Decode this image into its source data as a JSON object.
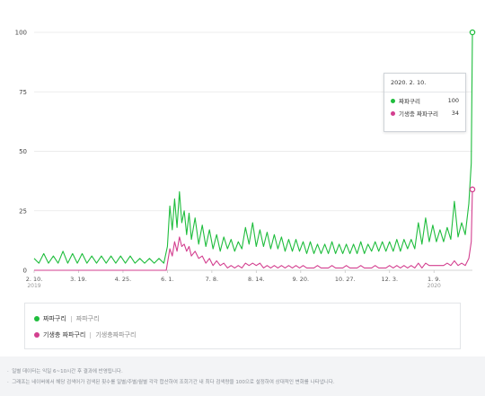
{
  "colors": {
    "series1": "#1fbd3d",
    "series2": "#d33f8f",
    "grid": "#e6e6e6",
    "axis": "#c8c8c8"
  },
  "chart_data": {
    "type": "line",
    "title": "",
    "xlabel": "",
    "ylabel": "",
    "ylim": [
      0,
      100
    ],
    "yticks": [
      0,
      25,
      50,
      75,
      100
    ],
    "xlim": [
      "2019-02-10",
      "2020-02-10"
    ],
    "grid": true,
    "x_ticks": [
      {
        "date": "2019-02-10",
        "label": "2. 10.",
        "sub": "2019"
      },
      {
        "date": "2019-03-19",
        "label": "3. 19.",
        "sub": ""
      },
      {
        "date": "2019-04-25",
        "label": "4. 25.",
        "sub": ""
      },
      {
        "date": "2019-06-01",
        "label": "6. 1.",
        "sub": ""
      },
      {
        "date": "2019-07-08",
        "label": "7. 8.",
        "sub": ""
      },
      {
        "date": "2019-08-14",
        "label": "8. 14.",
        "sub": ""
      },
      {
        "date": "2019-09-20",
        "label": "9. 20.",
        "sub": ""
      },
      {
        "date": "2019-10-27",
        "label": "10. 27.",
        "sub": ""
      },
      {
        "date": "2019-12-03",
        "label": "12. 3.",
        "sub": ""
      },
      {
        "date": "2020-01-09",
        "label": "1. 9.",
        "sub": "2020"
      }
    ],
    "series": [
      {
        "name": "짜파구리",
        "points": [
          [
            "2019-02-10",
            5
          ],
          [
            "2019-02-14",
            3
          ],
          [
            "2019-02-18",
            7
          ],
          [
            "2019-02-22",
            3
          ],
          [
            "2019-02-26",
            6
          ],
          [
            "2019-03-02",
            3
          ],
          [
            "2019-03-06",
            8
          ],
          [
            "2019-03-10",
            3
          ],
          [
            "2019-03-14",
            7
          ],
          [
            "2019-03-18",
            3
          ],
          [
            "2019-03-22",
            7
          ],
          [
            "2019-03-26",
            3
          ],
          [
            "2019-03-30",
            6
          ],
          [
            "2019-04-03",
            3
          ],
          [
            "2019-04-07",
            6
          ],
          [
            "2019-04-11",
            3
          ],
          [
            "2019-04-15",
            6
          ],
          [
            "2019-04-19",
            3
          ],
          [
            "2019-04-23",
            6
          ],
          [
            "2019-04-27",
            3
          ],
          [
            "2019-05-01",
            6
          ],
          [
            "2019-05-05",
            3
          ],
          [
            "2019-05-09",
            5
          ],
          [
            "2019-05-13",
            3
          ],
          [
            "2019-05-17",
            5
          ],
          [
            "2019-05-21",
            3
          ],
          [
            "2019-05-25",
            5
          ],
          [
            "2019-05-29",
            3
          ],
          [
            "2019-06-01",
            10
          ],
          [
            "2019-06-03",
            27
          ],
          [
            "2019-06-05",
            17
          ],
          [
            "2019-06-07",
            30
          ],
          [
            "2019-06-09",
            18
          ],
          [
            "2019-06-11",
            33
          ],
          [
            "2019-06-13",
            20
          ],
          [
            "2019-06-15",
            25
          ],
          [
            "2019-06-17",
            15
          ],
          [
            "2019-06-19",
            24
          ],
          [
            "2019-06-21",
            13
          ],
          [
            "2019-06-24",
            22
          ],
          [
            "2019-06-27",
            11
          ],
          [
            "2019-06-30",
            19
          ],
          [
            "2019-07-03",
            10
          ],
          [
            "2019-07-06",
            17
          ],
          [
            "2019-07-09",
            9
          ],
          [
            "2019-07-12",
            15
          ],
          [
            "2019-07-15",
            8
          ],
          [
            "2019-07-18",
            14
          ],
          [
            "2019-07-21",
            9
          ],
          [
            "2019-07-24",
            13
          ],
          [
            "2019-07-27",
            8
          ],
          [
            "2019-07-30",
            12
          ],
          [
            "2019-08-02",
            9
          ],
          [
            "2019-08-05",
            18
          ],
          [
            "2019-08-08",
            11
          ],
          [
            "2019-08-11",
            20
          ],
          [
            "2019-08-14",
            10
          ],
          [
            "2019-08-17",
            17
          ],
          [
            "2019-08-20",
            10
          ],
          [
            "2019-08-23",
            16
          ],
          [
            "2019-08-26",
            9
          ],
          [
            "2019-08-29",
            15
          ],
          [
            "2019-09-01",
            9
          ],
          [
            "2019-09-04",
            14
          ],
          [
            "2019-09-07",
            8
          ],
          [
            "2019-09-10",
            13
          ],
          [
            "2019-09-13",
            8
          ],
          [
            "2019-09-16",
            13
          ],
          [
            "2019-09-19",
            8
          ],
          [
            "2019-09-22",
            12
          ],
          [
            "2019-09-25",
            7
          ],
          [
            "2019-09-28",
            12
          ],
          [
            "2019-10-01",
            7
          ],
          [
            "2019-10-04",
            11
          ],
          [
            "2019-10-07",
            7
          ],
          [
            "2019-10-10",
            11
          ],
          [
            "2019-10-13",
            7
          ],
          [
            "2019-10-16",
            12
          ],
          [
            "2019-10-19",
            7
          ],
          [
            "2019-10-22",
            11
          ],
          [
            "2019-10-25",
            7
          ],
          [
            "2019-10-28",
            11
          ],
          [
            "2019-10-31",
            7
          ],
          [
            "2019-11-03",
            11
          ],
          [
            "2019-11-06",
            7
          ],
          [
            "2019-11-09",
            12
          ],
          [
            "2019-11-12",
            7
          ],
          [
            "2019-11-15",
            11
          ],
          [
            "2019-11-18",
            8
          ],
          [
            "2019-11-21",
            12
          ],
          [
            "2019-11-24",
            8
          ],
          [
            "2019-11-27",
            12
          ],
          [
            "2019-11-30",
            8
          ],
          [
            "2019-12-03",
            12
          ],
          [
            "2019-12-06",
            8
          ],
          [
            "2019-12-09",
            13
          ],
          [
            "2019-12-12",
            8
          ],
          [
            "2019-12-15",
            13
          ],
          [
            "2019-12-18",
            9
          ],
          [
            "2019-12-21",
            13
          ],
          [
            "2019-12-24",
            9
          ],
          [
            "2019-12-27",
            20
          ],
          [
            "2019-12-30",
            11
          ],
          [
            "2020-01-02",
            22
          ],
          [
            "2020-01-05",
            12
          ],
          [
            "2020-01-08",
            19
          ],
          [
            "2020-01-11",
            12
          ],
          [
            "2020-01-14",
            17
          ],
          [
            "2020-01-17",
            12
          ],
          [
            "2020-01-20",
            18
          ],
          [
            "2020-01-23",
            13
          ],
          [
            "2020-01-26",
            29
          ],
          [
            "2020-01-29",
            14
          ],
          [
            "2020-02-01",
            20
          ],
          [
            "2020-02-04",
            15
          ],
          [
            "2020-02-07",
            28
          ],
          [
            "2020-02-09",
            45
          ],
          [
            "2020-02-10",
            100
          ]
        ]
      },
      {
        "name": "기생충 짜파구리",
        "points": [
          [
            "2019-02-10",
            0
          ],
          [
            "2019-05-31",
            0
          ],
          [
            "2019-06-01",
            3
          ],
          [
            "2019-06-03",
            9
          ],
          [
            "2019-06-05",
            6
          ],
          [
            "2019-06-07",
            12
          ],
          [
            "2019-06-09",
            8
          ],
          [
            "2019-06-11",
            14
          ],
          [
            "2019-06-13",
            10
          ],
          [
            "2019-06-15",
            11
          ],
          [
            "2019-06-17",
            8
          ],
          [
            "2019-06-19",
            10
          ],
          [
            "2019-06-21",
            6
          ],
          [
            "2019-06-24",
            8
          ],
          [
            "2019-06-27",
            5
          ],
          [
            "2019-06-30",
            6
          ],
          [
            "2019-07-03",
            3
          ],
          [
            "2019-07-06",
            5
          ],
          [
            "2019-07-09",
            2
          ],
          [
            "2019-07-12",
            4
          ],
          [
            "2019-07-15",
            2
          ],
          [
            "2019-07-18",
            3
          ],
          [
            "2019-07-21",
            1
          ],
          [
            "2019-07-24",
            2
          ],
          [
            "2019-07-27",
            1
          ],
          [
            "2019-07-30",
            2
          ],
          [
            "2019-08-02",
            1
          ],
          [
            "2019-08-05",
            3
          ],
          [
            "2019-08-08",
            2
          ],
          [
            "2019-08-11",
            3
          ],
          [
            "2019-08-14",
            2
          ],
          [
            "2019-08-17",
            3
          ],
          [
            "2019-08-20",
            1
          ],
          [
            "2019-08-23",
            2
          ],
          [
            "2019-08-26",
            1
          ],
          [
            "2019-08-29",
            2
          ],
          [
            "2019-09-01",
            1
          ],
          [
            "2019-09-04",
            2
          ],
          [
            "2019-09-07",
            1
          ],
          [
            "2019-09-10",
            2
          ],
          [
            "2019-09-13",
            1
          ],
          [
            "2019-09-16",
            2
          ],
          [
            "2019-09-19",
            1
          ],
          [
            "2019-09-22",
            2
          ],
          [
            "2019-09-25",
            1
          ],
          [
            "2019-09-28",
            1
          ],
          [
            "2019-10-01",
            1
          ],
          [
            "2019-10-04",
            2
          ],
          [
            "2019-10-07",
            1
          ],
          [
            "2019-10-10",
            1
          ],
          [
            "2019-10-13",
            1
          ],
          [
            "2019-10-16",
            2
          ],
          [
            "2019-10-19",
            1
          ],
          [
            "2019-10-22",
            1
          ],
          [
            "2019-10-25",
            1
          ],
          [
            "2019-10-28",
            2
          ],
          [
            "2019-10-31",
            1
          ],
          [
            "2019-11-03",
            1
          ],
          [
            "2019-11-06",
            1
          ],
          [
            "2019-11-09",
            2
          ],
          [
            "2019-11-12",
            1
          ],
          [
            "2019-11-15",
            1
          ],
          [
            "2019-11-18",
            1
          ],
          [
            "2019-11-21",
            2
          ],
          [
            "2019-11-24",
            1
          ],
          [
            "2019-11-27",
            1
          ],
          [
            "2019-11-30",
            1
          ],
          [
            "2019-12-03",
            2
          ],
          [
            "2019-12-06",
            1
          ],
          [
            "2019-12-09",
            2
          ],
          [
            "2019-12-12",
            1
          ],
          [
            "2019-12-15",
            2
          ],
          [
            "2019-12-18",
            1
          ],
          [
            "2019-12-21",
            2
          ],
          [
            "2019-12-24",
            1
          ],
          [
            "2019-12-27",
            3
          ],
          [
            "2019-12-30",
            1
          ],
          [
            "2020-01-02",
            3
          ],
          [
            "2020-01-05",
            2
          ],
          [
            "2020-01-08",
            2
          ],
          [
            "2020-01-11",
            2
          ],
          [
            "2020-01-14",
            2
          ],
          [
            "2020-01-17",
            2
          ],
          [
            "2020-01-20",
            3
          ],
          [
            "2020-01-23",
            2
          ],
          [
            "2020-01-26",
            4
          ],
          [
            "2020-01-29",
            2
          ],
          [
            "2020-02-01",
            3
          ],
          [
            "2020-02-04",
            2
          ],
          [
            "2020-02-07",
            5
          ],
          [
            "2020-02-09",
            12
          ],
          [
            "2020-02-10",
            34
          ]
        ]
      }
    ]
  },
  "tooltip": {
    "date": "2020. 2. 10.",
    "rows": [
      {
        "name": "짜파구리",
        "value": "100"
      },
      {
        "name": "기생충 짜파구리",
        "value": "34"
      }
    ]
  },
  "legend": {
    "items": [
      {
        "name": "짜파구리",
        "keywords": "짜파구리"
      },
      {
        "name": "기생충 짜파구리",
        "keywords": "기생충짜파구리"
      }
    ]
  },
  "footer": {
    "notes": [
      "일별 데이터는 익일 6~10시간 후 결과에 반영됩니다.",
      "그래프는 네이버에서 해당 검색어가 검색된 횟수를 일별/주별/월별 각각 합산하여 조회기간 내 최다 검색량을 100으로 설정하여 상대적인 변화를 나타냅니다."
    ]
  }
}
